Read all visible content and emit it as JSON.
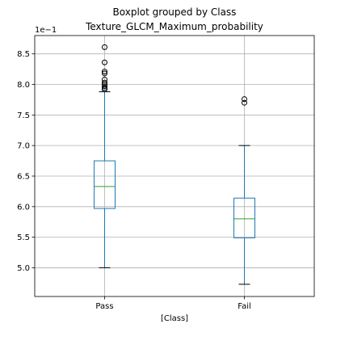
{
  "chart_data": {
    "type": "boxplot",
    "suptitle": "Boxplot grouped by Class",
    "title": "Texture_GLCM_Maximum_probability",
    "xlabel": "[Class]",
    "ylabel": "",
    "y_offset_label": "1e−1",
    "ylim": [
      4.53,
      8.8
    ],
    "yticks": [
      5.0,
      5.5,
      6.0,
      6.5,
      7.0,
      7.5,
      8.0,
      8.5
    ],
    "ytick_labels": [
      "5.0",
      "5.5",
      "6.0",
      "6.5",
      "7.0",
      "7.5",
      "8.0",
      "8.5"
    ],
    "grid": true,
    "categories": [
      "Pass",
      "Fail"
    ],
    "boxes": [
      {
        "name": "Pass",
        "whislo": 5.0,
        "q1": 5.97,
        "med": 6.33,
        "q3": 6.75,
        "whishi": 7.88,
        "fliers": [
          8.61,
          8.36,
          8.21,
          8.18,
          8.08,
          8.03,
          8.0,
          7.97,
          7.94,
          7.92
        ]
      },
      {
        "name": "Fail",
        "whislo": 4.73,
        "q1": 5.49,
        "med": 5.8,
        "q3": 6.14,
        "whishi": 7.0,
        "fliers": [
          7.76,
          7.7
        ]
      }
    ]
  }
}
